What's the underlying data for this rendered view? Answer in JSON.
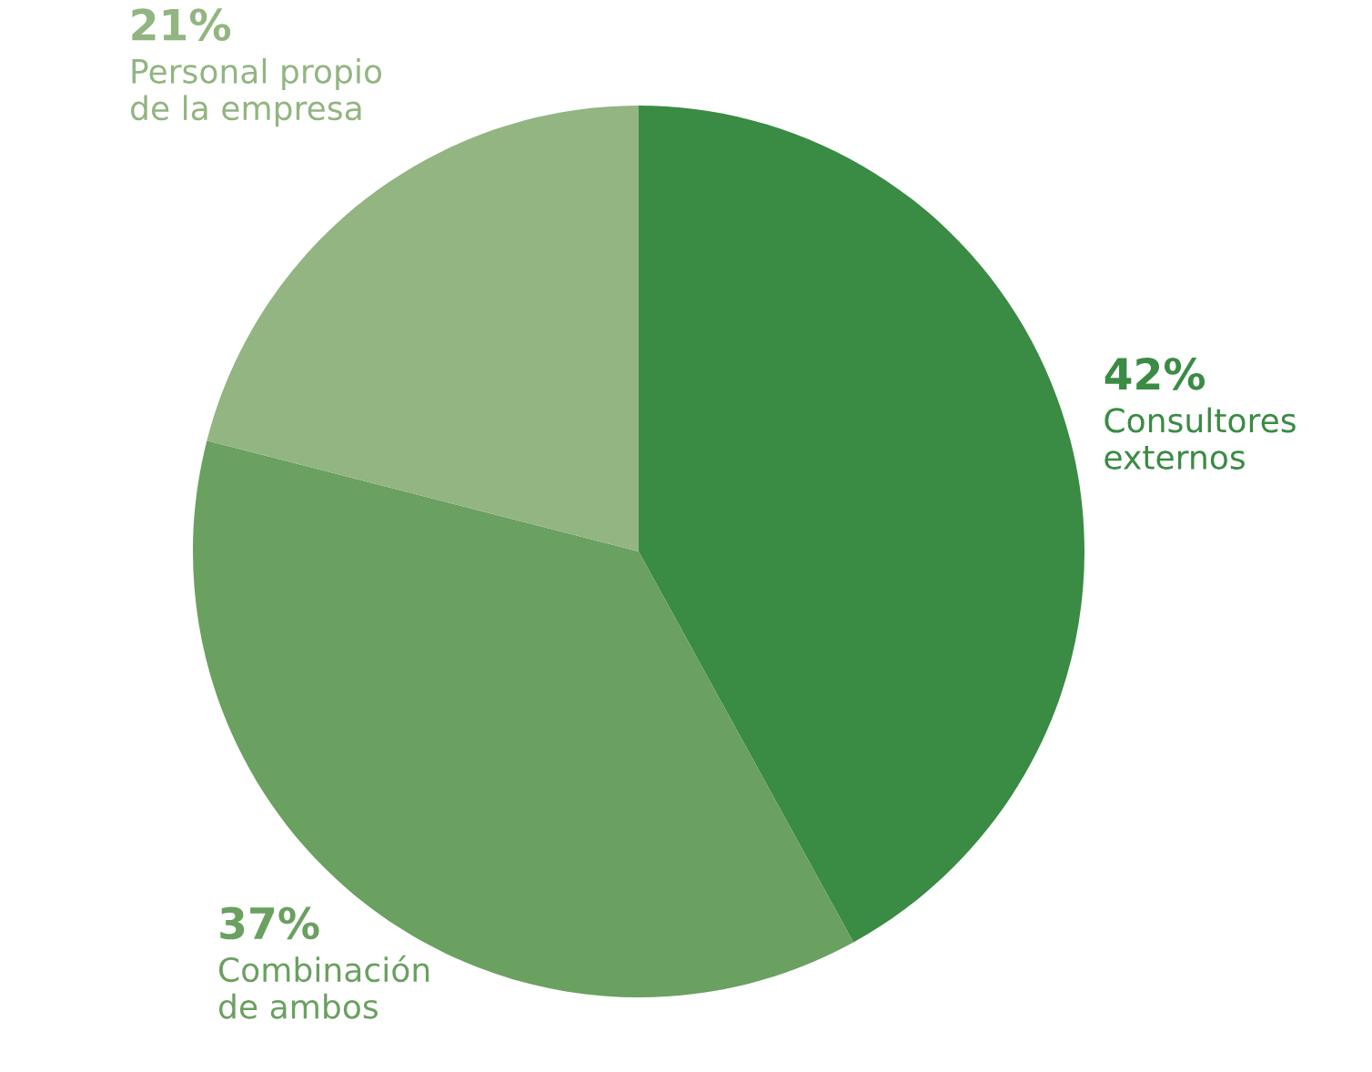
{
  "chart_data": {
    "type": "pie",
    "categories": [
      "Consultores\nexternos",
      "Combinación\nde ambos",
      "Personal propio\nde la empresa"
    ],
    "values": [
      42,
      37,
      21
    ],
    "value_labels": [
      "42%",
      "37%",
      "21%"
    ],
    "colors": [
      "#3a8b44",
      "#6aa060",
      "#92b581"
    ],
    "legend": false
  }
}
